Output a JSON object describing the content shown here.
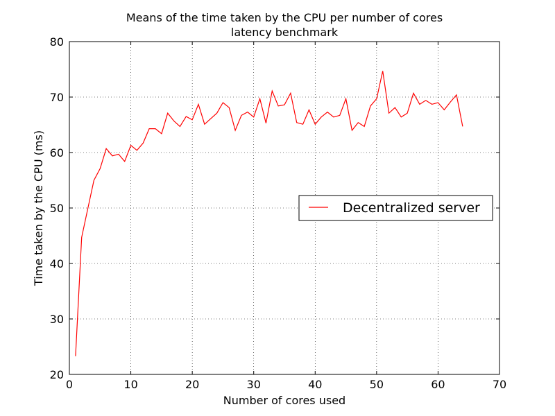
{
  "chart_data": {
    "type": "line",
    "title": "Means of the time taken by the CPU per number of cores",
    "subtitle": "latency benchmark",
    "xlabel": "Number of cores used",
    "ylabel": "Time taken by the CPU (ms)",
    "xlim": [
      0,
      70
    ],
    "ylim": [
      20,
      80
    ],
    "xticks": [
      "0",
      "10",
      "20",
      "30",
      "40",
      "50",
      "60",
      "70"
    ],
    "yticks": [
      "20",
      "30",
      "40",
      "50",
      "60",
      "70",
      "80"
    ],
    "grid": true,
    "legend_position": "center-right",
    "series": [
      {
        "name": "Decentralized server",
        "color": "#ff0000",
        "x": [
          1,
          2,
          3,
          4,
          5,
          6,
          7,
          8,
          9,
          10,
          11,
          12,
          13,
          14,
          15,
          16,
          17,
          18,
          19,
          20,
          21,
          22,
          23,
          24,
          25,
          26,
          27,
          28,
          29,
          30,
          31,
          32,
          33,
          34,
          35,
          36,
          37,
          38,
          39,
          40,
          41,
          42,
          43,
          44,
          45,
          46,
          47,
          48,
          49,
          50,
          51,
          52,
          53,
          54,
          55,
          56,
          57,
          58,
          59,
          60,
          61,
          62,
          63,
          64
        ],
        "values": [
          23.3,
          44.7,
          49.9,
          55.0,
          57.1,
          60.7,
          59.4,
          59.7,
          58.4,
          61.3,
          60.4,
          61.7,
          64.3,
          64.3,
          63.4,
          67.1,
          65.7,
          64.7,
          66.5,
          65.9,
          68.7,
          65.1,
          66.1,
          67.1,
          69.0,
          68.1,
          64.0,
          66.7,
          67.3,
          66.4,
          69.7,
          65.3,
          71.1,
          68.4,
          68.6,
          70.7,
          65.4,
          65.1,
          67.7,
          65.1,
          66.4,
          67.3,
          66.4,
          66.7,
          69.7,
          64.0,
          65.4,
          64.7,
          68.4,
          69.7,
          74.7,
          67.1,
          68.1,
          66.4,
          67.1,
          70.7,
          68.7,
          69.4,
          68.7,
          69.0,
          67.7,
          69.1,
          70.4,
          64.7
        ]
      }
    ]
  }
}
